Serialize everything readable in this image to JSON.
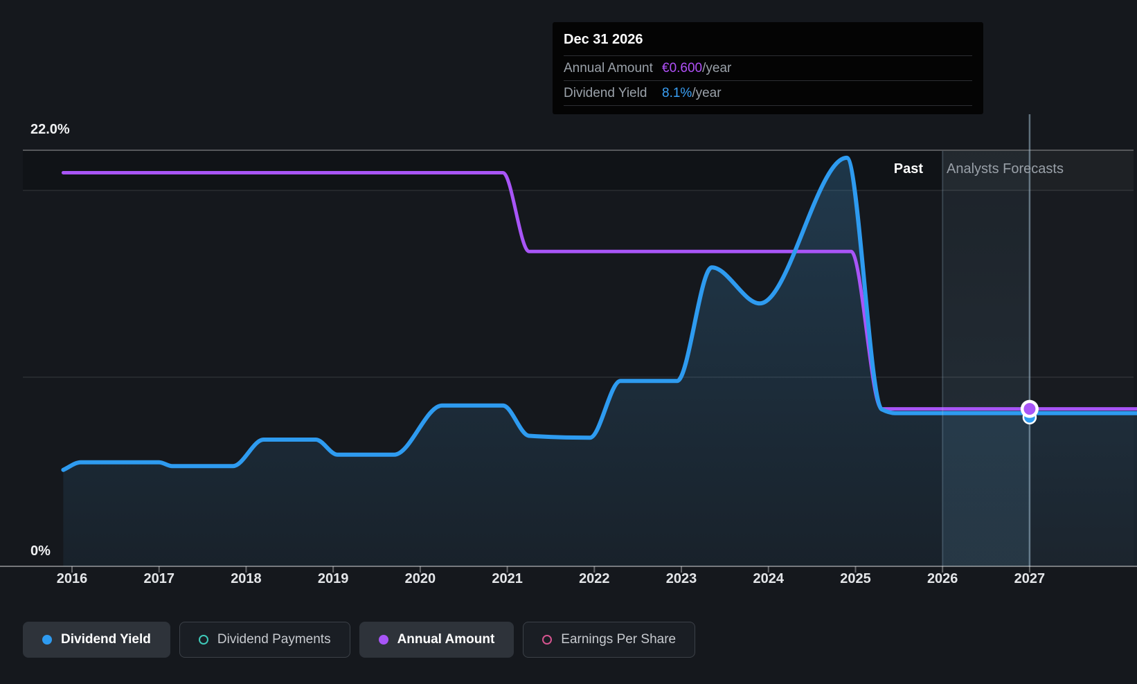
{
  "header": {
    "past_label": "Past",
    "forecast_label": "Analysts Forecasts"
  },
  "y_axis": {
    "top_label": "22.0%",
    "bottom_label": "0%"
  },
  "tooltip": {
    "date": "Dec 31 2026",
    "rows": [
      {
        "label": "Annual Amount",
        "value": "€0.600",
        "suffix": "/year",
        "value_color": "#b050f8"
      },
      {
        "label": "Dividend Yield",
        "value": "8.1%",
        "suffix": "/year",
        "value_color": "#3aa0f5"
      }
    ]
  },
  "legend": [
    {
      "label": "Dividend Yield",
      "color": "#2e9bf0",
      "style": "filled",
      "active": true
    },
    {
      "label": "Dividend Payments",
      "color": "#3fc9b9",
      "style": "ring",
      "active": false
    },
    {
      "label": "Annual Amount",
      "color": "#a855f7",
      "style": "filled",
      "active": true
    },
    {
      "label": "Earnings Per Share",
      "color": "#d5548f",
      "style": "ring",
      "active": false
    }
  ],
  "chart_data": {
    "type": "line",
    "title": "Dividend history and forecast",
    "x_axis": {
      "tick_years": [
        2016,
        2017,
        2018,
        2019,
        2020,
        2021,
        2022,
        2023,
        2024,
        2025,
        2026,
        2027
      ],
      "range": [
        2015.9,
        2028.25
      ]
    },
    "y_axis_left": {
      "unit": "%",
      "min": 0,
      "max_label_pct": 22.0,
      "gridline_pcts": [
        22.0,
        10.0
      ]
    },
    "forecast_start_year": 2026,
    "legend_position": "bottom",
    "series": [
      {
        "name": "Dividend Yield",
        "unit": "%",
        "color": "#2e9bf0",
        "area_fill": true,
        "points": [
          [
            2015.9,
            5.1
          ],
          [
            2016.1,
            5.5
          ],
          [
            2017.0,
            5.5
          ],
          [
            2017.15,
            5.3
          ],
          [
            2017.85,
            5.3
          ],
          [
            2018.2,
            6.7
          ],
          [
            2018.8,
            6.7
          ],
          [
            2019.05,
            5.9
          ],
          [
            2019.7,
            5.9
          ],
          [
            2020.25,
            8.5
          ],
          [
            2020.95,
            8.5
          ],
          [
            2021.25,
            6.9
          ],
          [
            2021.95,
            6.8
          ],
          [
            2022.3,
            9.8
          ],
          [
            2022.95,
            9.8
          ],
          [
            2023.35,
            15.8
          ],
          [
            2023.9,
            13.9
          ],
          [
            2024.9,
            21.6
          ],
          [
            2025.3,
            8.3
          ],
          [
            2025.45,
            8.1
          ],
          [
            2028.25,
            8.1
          ]
        ]
      },
      {
        "name": "Annual Amount",
        "unit": "EUR/year",
        "color": "#a855f7",
        "area_fill": false,
        "points": [
          [
            2015.9,
            1.5
          ],
          [
            2020.95,
            1.5
          ],
          [
            2021.25,
            1.2
          ],
          [
            2024.95,
            1.2
          ],
          [
            2025.3,
            0.6
          ],
          [
            2028.25,
            0.6
          ]
        ]
      }
    ],
    "marker": {
      "year": 2027,
      "date_label": "Dec 31 2026",
      "annual_amount_eur": 0.6,
      "dividend_yield_pct": 8.1
    }
  }
}
